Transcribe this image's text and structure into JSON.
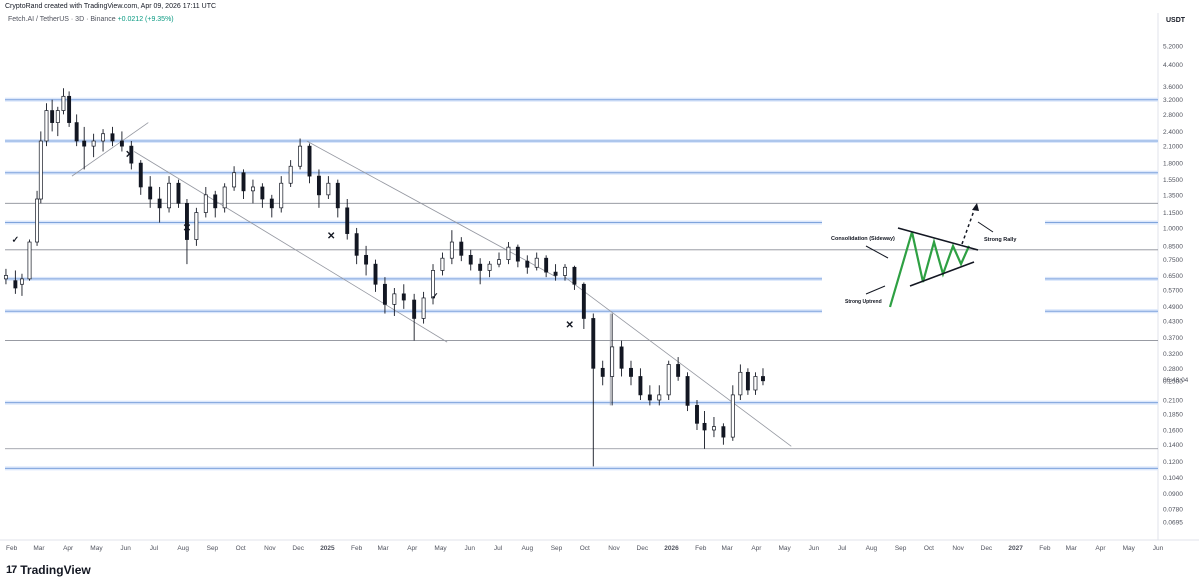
{
  "header": {
    "credit": "CryptoRand created with TradingView.com, Apr 09, 2026 17:11 UTC",
    "symbol": "Fetch.AI / TetherUS · 3D · Binance",
    "change": "+0.0212 (+9.35%)",
    "currency": "USDT"
  },
  "footer": {
    "logo_mark": "17",
    "brand": "TradingView"
  },
  "chart_data": {
    "type": "candlestick",
    "y_scale": "log",
    "ylim": [
      0.059,
      6.3
    ],
    "price_ticks": [
      "5.2000",
      "4.4000",
      "3.6000",
      "3.2000",
      "2.8000",
      "2.4000",
      "2.1000",
      "1.8000",
      "1.5500",
      "1.3500",
      "1.1500",
      "1.0000",
      "0.8500",
      "0.7500",
      "0.6500",
      "0.5700",
      "0.4900",
      "0.4300",
      "0.3700",
      "0.3200",
      "0.2800",
      "0.2500",
      "0.2100",
      "0.1850",
      "0.1600",
      "0.1400",
      "0.1200",
      "0.1040",
      "0.0900",
      "0.0780",
      "0.0695"
    ],
    "time_ticks": [
      "Feb",
      "Mar",
      "Apr",
      "May",
      "Jun",
      "Jul",
      "Aug",
      "Sep",
      "Oct",
      "Nov",
      "Dec",
      "2025",
      "Feb",
      "Mar",
      "Apr",
      "May",
      "Jun",
      "Jul",
      "Aug",
      "Sep",
      "Oct",
      "Nov",
      "Dec",
      "2026",
      "Feb",
      "Mar",
      "Apr",
      "May",
      "Jun",
      "Jul",
      "Aug",
      "Sep",
      "Oct",
      "Nov",
      "Dec",
      "2027",
      "Feb",
      "Mar",
      "Apr",
      "May",
      "Jun"
    ],
    "x_range": [
      "2024-01-25",
      "2027-06-01"
    ],
    "last_price_label": "06:48:04",
    "horizontal_levels": [
      3.2,
      2.2,
      1.65,
      1.25,
      1.05,
      0.82,
      0.63,
      0.47,
      0.36,
      0.205,
      0.135,
      0.113
    ],
    "trendlines": [
      {
        "from": {
          "date": "2024-04-05",
          "price": 1.6
        },
        "to": {
          "date": "2024-06-25",
          "price": 2.6
        }
      },
      {
        "from": {
          "date": "2024-06-10",
          "price": 2.0
        },
        "to": {
          "date": "2025-05-08",
          "price": 0.355
        }
      },
      {
        "from": {
          "date": "2024-12-10",
          "price": 2.2
        },
        "to": {
          "date": "2025-09-01",
          "price": 0.64
        }
      },
      {
        "from": {
          "date": "2025-09-10",
          "price": 0.64
        },
        "to": {
          "date": "2026-05-08",
          "price": 0.138
        }
      },
      {
        "from": {
          "date": "2025-10-28",
          "price": 0.46
        },
        "to": {
          "date": "2025-10-28",
          "price": 0.2
        }
      }
    ],
    "markers": [
      {
        "type": "check",
        "date": "2024-02-05",
        "price": 0.9
      },
      {
        "type": "cross",
        "date": "2024-06-05",
        "price": 1.95
      },
      {
        "type": "cross",
        "date": "2024-08-05",
        "price": 1.0
      },
      {
        "type": "cross",
        "date": "2025-01-05",
        "price": 0.93
      },
      {
        "type": "check",
        "date": "2025-04-25",
        "price": 0.54
      },
      {
        "type": "cross",
        "date": "2025-09-15",
        "price": 0.415
      }
    ],
    "candles": [
      {
        "date": "2024-01-26",
        "o": 0.63,
        "h": 0.69,
        "l": 0.6,
        "c": 0.65
      },
      {
        "date": "2024-02-05",
        "o": 0.62,
        "h": 0.68,
        "l": 0.55,
        "c": 0.58
      },
      {
        "date": "2024-02-12",
        "o": 0.6,
        "h": 0.66,
        "l": 0.54,
        "c": 0.63
      },
      {
        "date": "2024-02-20",
        "o": 0.63,
        "h": 0.9,
        "l": 0.62,
        "c": 0.88
      },
      {
        "date": "2024-02-28",
        "o": 0.88,
        "h": 1.4,
        "l": 0.85,
        "c": 1.3
      },
      {
        "date": "2024-03-03",
        "o": 1.3,
        "h": 2.4,
        "l": 1.25,
        "c": 2.2
      },
      {
        "date": "2024-03-09",
        "o": 2.2,
        "h": 3.1,
        "l": 2.1,
        "c": 2.9
      },
      {
        "date": "2024-03-15",
        "o": 2.9,
        "h": 3.2,
        "l": 2.4,
        "c": 2.6
      },
      {
        "date": "2024-03-21",
        "o": 2.6,
        "h": 3.0,
        "l": 2.3,
        "c": 2.9
      },
      {
        "date": "2024-03-27",
        "o": 2.9,
        "h": 3.55,
        "l": 2.8,
        "c": 3.3
      },
      {
        "date": "2024-04-02",
        "o": 3.3,
        "h": 3.45,
        "l": 2.5,
        "c": 2.6
      },
      {
        "date": "2024-04-10",
        "o": 2.6,
        "h": 2.8,
        "l": 2.1,
        "c": 2.2
      },
      {
        "date": "2024-04-18",
        "o": 2.2,
        "h": 2.5,
        "l": 1.7,
        "c": 2.1
      },
      {
        "date": "2024-04-28",
        "o": 2.1,
        "h": 2.35,
        "l": 1.9,
        "c": 2.2
      },
      {
        "date": "2024-05-08",
        "o": 2.2,
        "h": 2.45,
        "l": 2.0,
        "c": 2.35
      },
      {
        "date": "2024-05-18",
        "o": 2.35,
        "h": 2.5,
        "l": 2.1,
        "c": 2.2
      },
      {
        "date": "2024-05-28",
        "o": 2.2,
        "h": 2.4,
        "l": 2.0,
        "c": 2.1
      },
      {
        "date": "2024-06-07",
        "o": 2.1,
        "h": 2.2,
        "l": 1.7,
        "c": 1.8
      },
      {
        "date": "2024-06-17",
        "o": 1.8,
        "h": 1.85,
        "l": 1.35,
        "c": 1.45
      },
      {
        "date": "2024-06-27",
        "o": 1.45,
        "h": 1.6,
        "l": 1.2,
        "c": 1.3
      },
      {
        "date": "2024-07-07",
        "o": 1.3,
        "h": 1.45,
        "l": 1.05,
        "c": 1.2
      },
      {
        "date": "2024-07-17",
        "o": 1.2,
        "h": 1.6,
        "l": 1.15,
        "c": 1.5
      },
      {
        "date": "2024-07-27",
        "o": 1.5,
        "h": 1.55,
        "l": 1.2,
        "c": 1.25
      },
      {
        "date": "2024-08-05",
        "o": 1.25,
        "h": 1.3,
        "l": 0.72,
        "c": 0.9
      },
      {
        "date": "2024-08-15",
        "o": 0.9,
        "h": 1.2,
        "l": 0.85,
        "c": 1.15
      },
      {
        "date": "2024-08-25",
        "o": 1.15,
        "h": 1.45,
        "l": 1.1,
        "c": 1.35
      },
      {
        "date": "2024-09-04",
        "o": 1.35,
        "h": 1.4,
        "l": 1.1,
        "c": 1.2
      },
      {
        "date": "2024-09-14",
        "o": 1.2,
        "h": 1.5,
        "l": 1.15,
        "c": 1.45
      },
      {
        "date": "2024-09-24",
        "o": 1.45,
        "h": 1.75,
        "l": 1.4,
        "c": 1.65
      },
      {
        "date": "2024-10-04",
        "o": 1.65,
        "h": 1.7,
        "l": 1.3,
        "c": 1.4
      },
      {
        "date": "2024-10-14",
        "o": 1.4,
        "h": 1.55,
        "l": 1.25,
        "c": 1.45
      },
      {
        "date": "2024-10-24",
        "o": 1.45,
        "h": 1.5,
        "l": 1.2,
        "c": 1.3
      },
      {
        "date": "2024-11-03",
        "o": 1.3,
        "h": 1.35,
        "l": 1.1,
        "c": 1.2
      },
      {
        "date": "2024-11-13",
        "o": 1.2,
        "h": 1.6,
        "l": 1.15,
        "c": 1.5
      },
      {
        "date": "2024-11-23",
        "o": 1.5,
        "h": 1.85,
        "l": 1.45,
        "c": 1.75
      },
      {
        "date": "2024-12-03",
        "o": 1.75,
        "h": 2.25,
        "l": 1.7,
        "c": 2.1
      },
      {
        "date": "2024-12-13",
        "o": 2.1,
        "h": 2.15,
        "l": 1.5,
        "c": 1.6
      },
      {
        "date": "2024-12-23",
        "o": 1.6,
        "h": 1.7,
        "l": 1.2,
        "c": 1.35
      },
      {
        "date": "2025-01-02",
        "o": 1.35,
        "h": 1.6,
        "l": 1.3,
        "c": 1.5
      },
      {
        "date": "2025-01-12",
        "o": 1.5,
        "h": 1.55,
        "l": 1.1,
        "c": 1.2
      },
      {
        "date": "2025-01-22",
        "o": 1.2,
        "h": 1.3,
        "l": 0.9,
        "c": 0.95
      },
      {
        "date": "2025-02-01",
        "o": 0.95,
        "h": 1.0,
        "l": 0.72,
        "c": 0.78
      },
      {
        "date": "2025-02-11",
        "o": 0.78,
        "h": 0.85,
        "l": 0.65,
        "c": 0.72
      },
      {
        "date": "2025-02-21",
        "o": 0.72,
        "h": 0.75,
        "l": 0.56,
        "c": 0.6
      },
      {
        "date": "2025-03-03",
        "o": 0.6,
        "h": 0.64,
        "l": 0.46,
        "c": 0.5
      },
      {
        "date": "2025-03-13",
        "o": 0.5,
        "h": 0.58,
        "l": 0.45,
        "c": 0.55
      },
      {
        "date": "2025-03-23",
        "o": 0.55,
        "h": 0.6,
        "l": 0.48,
        "c": 0.52
      },
      {
        "date": "2025-04-03",
        "o": 0.52,
        "h": 0.55,
        "l": 0.36,
        "c": 0.44
      },
      {
        "date": "2025-04-13",
        "o": 0.44,
        "h": 0.56,
        "l": 0.42,
        "c": 0.53
      },
      {
        "date": "2025-04-23",
        "o": 0.53,
        "h": 0.72,
        "l": 0.5,
        "c": 0.68
      },
      {
        "date": "2025-05-03",
        "o": 0.68,
        "h": 0.8,
        "l": 0.65,
        "c": 0.76
      },
      {
        "date": "2025-05-13",
        "o": 0.76,
        "h": 0.98,
        "l": 0.72,
        "c": 0.88
      },
      {
        "date": "2025-05-23",
        "o": 0.88,
        "h": 0.92,
        "l": 0.74,
        "c": 0.78
      },
      {
        "date": "2025-06-02",
        "o": 0.78,
        "h": 0.82,
        "l": 0.68,
        "c": 0.72
      },
      {
        "date": "2025-06-12",
        "o": 0.72,
        "h": 0.76,
        "l": 0.6,
        "c": 0.68
      },
      {
        "date": "2025-06-22",
        "o": 0.68,
        "h": 0.74,
        "l": 0.64,
        "c": 0.72
      },
      {
        "date": "2025-07-02",
        "o": 0.72,
        "h": 0.8,
        "l": 0.7,
        "c": 0.75
      },
      {
        "date": "2025-07-12",
        "o": 0.75,
        "h": 0.88,
        "l": 0.72,
        "c": 0.84
      },
      {
        "date": "2025-07-22",
        "o": 0.84,
        "h": 0.86,
        "l": 0.7,
        "c": 0.74
      },
      {
        "date": "2025-08-01",
        "o": 0.74,
        "h": 0.78,
        "l": 0.66,
        "c": 0.7
      },
      {
        "date": "2025-08-11",
        "o": 0.7,
        "h": 0.8,
        "l": 0.68,
        "c": 0.76
      },
      {
        "date": "2025-08-21",
        "o": 0.76,
        "h": 0.78,
        "l": 0.64,
        "c": 0.67
      },
      {
        "date": "2025-08-31",
        "o": 0.67,
        "h": 0.72,
        "l": 0.62,
        "c": 0.65
      },
      {
        "date": "2025-09-10",
        "o": 0.65,
        "h": 0.72,
        "l": 0.62,
        "c": 0.7
      },
      {
        "date": "2025-09-20",
        "o": 0.7,
        "h": 0.71,
        "l": 0.57,
        "c": 0.6
      },
      {
        "date": "2025-09-30",
        "o": 0.6,
        "h": 0.61,
        "l": 0.4,
        "c": 0.44
      },
      {
        "date": "2025-10-10",
        "o": 0.44,
        "h": 0.46,
        "l": 0.115,
        "c": 0.28
      },
      {
        "date": "2025-10-20",
        "o": 0.28,
        "h": 0.3,
        "l": 0.24,
        "c": 0.26
      },
      {
        "date": "2025-10-30",
        "o": 0.26,
        "h": 0.46,
        "l": 0.2,
        "c": 0.34
      },
      {
        "date": "2025-11-09",
        "o": 0.34,
        "h": 0.36,
        "l": 0.26,
        "c": 0.28
      },
      {
        "date": "2025-11-19",
        "o": 0.28,
        "h": 0.3,
        "l": 0.24,
        "c": 0.26
      },
      {
        "date": "2025-11-29",
        "o": 0.26,
        "h": 0.28,
        "l": 0.21,
        "c": 0.22
      },
      {
        "date": "2025-12-09",
        "o": 0.22,
        "h": 0.24,
        "l": 0.2,
        "c": 0.21
      },
      {
        "date": "2025-12-19",
        "o": 0.21,
        "h": 0.24,
        "l": 0.2,
        "c": 0.22
      },
      {
        "date": "2025-12-29",
        "o": 0.22,
        "h": 0.3,
        "l": 0.21,
        "c": 0.29
      },
      {
        "date": "2026-01-08",
        "o": 0.29,
        "h": 0.31,
        "l": 0.25,
        "c": 0.26
      },
      {
        "date": "2026-01-18",
        "o": 0.26,
        "h": 0.27,
        "l": 0.19,
        "c": 0.2
      },
      {
        "date": "2026-01-28",
        "o": 0.2,
        "h": 0.21,
        "l": 0.16,
        "c": 0.17
      },
      {
        "date": "2026-02-05",
        "o": 0.17,
        "h": 0.19,
        "l": 0.135,
        "c": 0.16
      },
      {
        "date": "2026-02-15",
        "o": 0.16,
        "h": 0.18,
        "l": 0.15,
        "c": 0.165
      },
      {
        "date": "2026-02-25",
        "o": 0.165,
        "h": 0.17,
        "l": 0.14,
        "c": 0.15
      },
      {
        "date": "2026-03-07",
        "o": 0.15,
        "h": 0.24,
        "l": 0.145,
        "c": 0.22
      },
      {
        "date": "2026-03-15",
        "o": 0.22,
        "h": 0.29,
        "l": 0.21,
        "c": 0.27
      },
      {
        "date": "2026-03-23",
        "o": 0.27,
        "h": 0.28,
        "l": 0.22,
        "c": 0.23
      },
      {
        "date": "2026-03-31",
        "o": 0.23,
        "h": 0.27,
        "l": 0.22,
        "c": 0.26
      },
      {
        "date": "2026-04-08",
        "o": 0.26,
        "h": 0.28,
        "l": 0.24,
        "c": 0.25
      }
    ],
    "annotation_sketch": {
      "consolidation_label": "Consolidation (Sideway)",
      "strong_rally_label": "Strong Rally",
      "strong_uptrend_label": "Strong Uptrend",
      "pattern_color": "#2ea043"
    }
  },
  "colors": {
    "level_blue": "#90b4e8",
    "level_gray": "#787b86",
    "candle": "#131722"
  }
}
